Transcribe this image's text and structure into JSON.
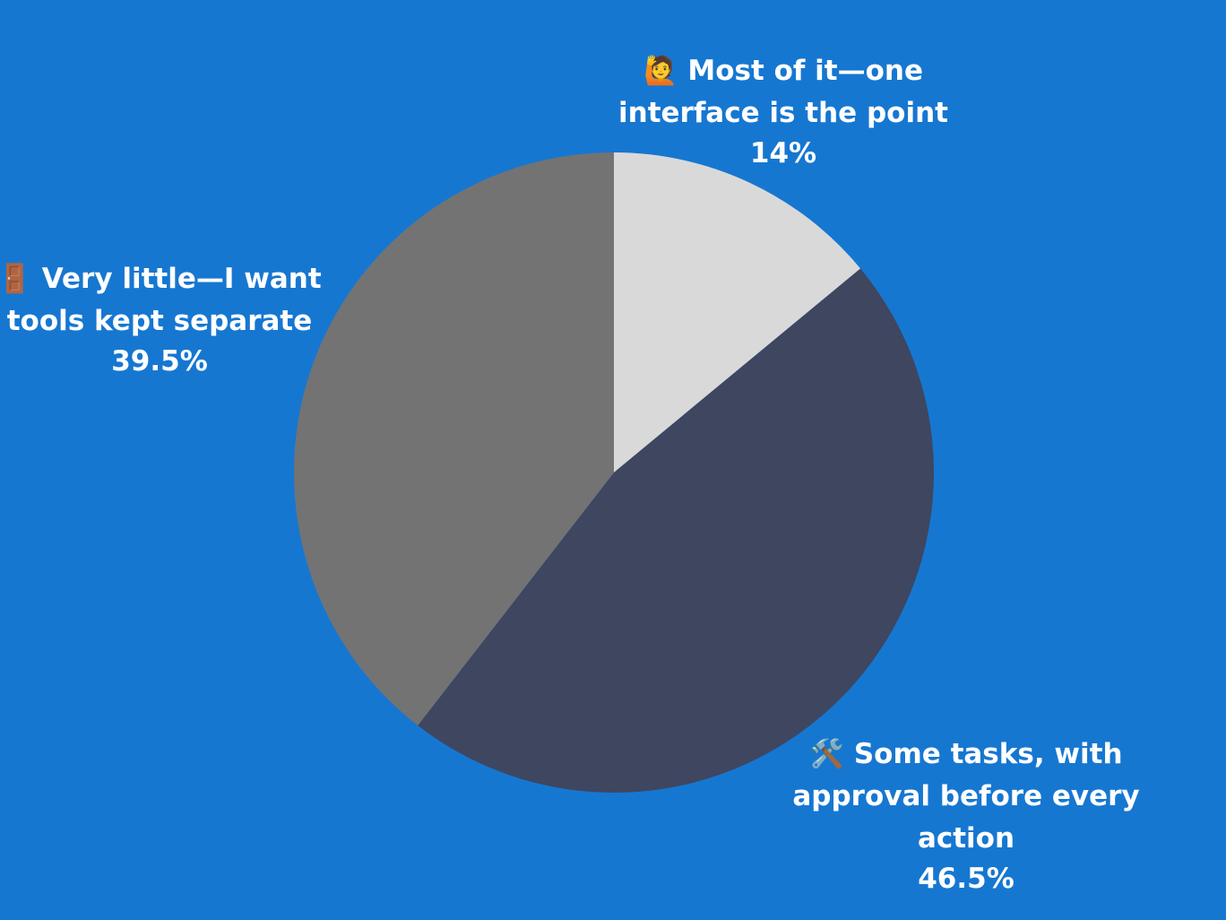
{
  "chart_data": {
    "type": "pie",
    "title": "",
    "slices": [
      {
        "label_lines": [
          "🙋 Most of it—one",
          "interface is the point"
        ],
        "value": 14,
        "value_label": "14%",
        "color": "#d9d9d9"
      },
      {
        "label_lines": [
          "🛠️ Some tasks, with",
          "approval before every",
          "action"
        ],
        "value": 46.5,
        "value_label": "46.5%",
        "color": "#3e4660"
      },
      {
        "label_lines": [
          "🚪 Very little—I want",
          "tools kept separate"
        ],
        "value": 39.5,
        "value_label": "39.5%",
        "color": "#737373"
      }
    ],
    "start_angle": "12 o'clock",
    "direction": "clockwise",
    "legend": "none",
    "background": "#1677d1"
  }
}
